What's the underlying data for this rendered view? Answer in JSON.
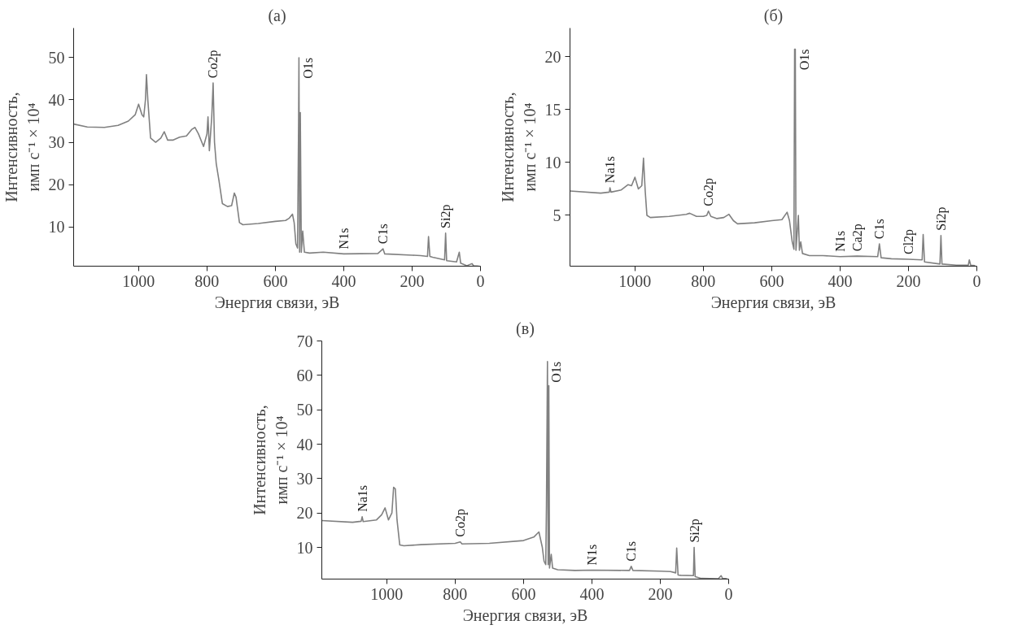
{
  "chart_data": [
    {
      "type": "line",
      "title": "(а)",
      "xlabel": "Энергия связи, эВ",
      "ylabel": "Интенсивность,\nимп с⁻¹ × 10⁴",
      "xlim": [
        1190,
        0
      ],
      "ylim": [
        0.7,
        57
      ],
      "xticks": [
        1000,
        800,
        600,
        400,
        200,
        0
      ],
      "yticks": [
        10,
        20,
        30,
        40,
        50
      ],
      "grid": false,
      "marker": "none",
      "line_style": "solid",
      "series": [
        {
          "color": "#808080",
          "x": [
            1190,
            1150,
            1100,
            1060,
            1030,
            1010,
            1000,
            990,
            985,
            980,
            977,
            973,
            965,
            950,
            935,
            925,
            915,
            900,
            880,
            860,
            845,
            835,
            825,
            810,
            800,
            797,
            793,
            786,
            782,
            778,
            773,
            765,
            755,
            740,
            728,
            720,
            715,
            705,
            695,
            650,
            600,
            570,
            560,
            550,
            545,
            540,
            535,
            532,
            531,
            529,
            527,
            524,
            520,
            515,
            500,
            460,
            400,
            300,
            285,
            280,
            200,
            175,
            155,
            152,
            148,
            140,
            105,
            102,
            99,
            70,
            62,
            58,
            40,
            25,
            20,
            5
          ],
          "values": [
            34.3,
            33.6,
            33.5,
            34,
            35,
            36.5,
            39,
            36.5,
            36,
            40,
            46,
            40,
            31,
            30,
            31,
            32.5,
            30.5,
            30.5,
            31.2,
            31.5,
            33,
            33.5,
            32,
            29,
            32,
            36,
            28,
            36,
            44,
            30,
            25,
            21,
            15.5,
            14.8,
            15,
            18,
            17,
            11,
            10.5,
            10.8,
            11.3,
            11.5,
            12,
            13,
            11,
            6,
            5,
            35,
            50,
            4,
            37,
            4,
            9,
            4,
            3.8,
            4,
            3.6,
            3.7,
            4.8,
            3.6,
            3.3,
            3.2,
            3.0,
            7.7,
            3,
            2.8,
            2.2,
            8.5,
            2,
            1.7,
            4,
            1.4,
            0.8,
            1.3,
            0.8,
            0.7
          ]
        }
      ],
      "annotations": [
        {
          "text": "Co2p",
          "x": 782,
          "y": 44
        },
        {
          "text": "O1s",
          "x": 531,
          "y": 50
        },
        {
          "text": "N1s",
          "x": 400,
          "y": 3.6
        },
        {
          "text": "C1s",
          "x": 285,
          "y": 4.8
        },
        {
          "text": "Si2p",
          "x": 102,
          "y": 8.5
        }
      ]
    },
    {
      "type": "line",
      "title": "(б)",
      "xlabel": "Энергия связи, эВ",
      "ylabel": "Интенсивность,\nимп с⁻¹ × 10⁴",
      "xlim": [
        1190,
        0
      ],
      "ylim": [
        0.2,
        22.7
      ],
      "xticks": [
        1000,
        800,
        600,
        400,
        200,
        0
      ],
      "yticks": [
        5,
        10,
        15,
        20
      ],
      "grid": false,
      "marker": "none",
      "line_style": "solid",
      "series": [
        {
          "color": "#808080",
          "x": [
            1190,
            1100,
            1075,
            1073,
            1070,
            1040,
            1020,
            1010,
            1000,
            990,
            980,
            975,
            970,
            965,
            955,
            900,
            850,
            840,
            820,
            800,
            790,
            785,
            778,
            760,
            740,
            725,
            712,
            700,
            650,
            600,
            570,
            555,
            548,
            540,
            535,
            533,
            531,
            529,
            522,
            519,
            515,
            510,
            490,
            450,
            400,
            350,
            290,
            285,
            280,
            250,
            200,
            160,
            157,
            153,
            108,
            105,
            102,
            60,
            25,
            22,
            18,
            5
          ],
          "values": [
            7.3,
            7.1,
            7.2,
            7.6,
            7.2,
            7.4,
            7.9,
            7.8,
            8.6,
            7.5,
            7.8,
            10.4,
            7.3,
            5.0,
            4.8,
            4.9,
            5.1,
            5.2,
            4.9,
            4.9,
            5.0,
            5.4,
            4.9,
            4.7,
            4.8,
            5.1,
            4.5,
            4.2,
            4.3,
            4.5,
            4.6,
            5.3,
            4.5,
            2.5,
            1.8,
            20.7,
            20.7,
            1.7,
            5.0,
            1.7,
            2.5,
            1.4,
            1.2,
            1.2,
            1.1,
            1.15,
            1.1,
            2.3,
            1.0,
            0.9,
            0.85,
            0.8,
            3.2,
            0.6,
            0.4,
            3.1,
            0.4,
            0.3,
            0.3,
            0.8,
            0.3,
            0.25
          ]
        }
      ],
      "annotations": [
        {
          "text": "Na1s",
          "x": 1073,
          "y": 7.6
        },
        {
          "text": "Co2p",
          "x": 785,
          "y": 5.4
        },
        {
          "text": "O1s",
          "x": 531,
          "y": 20.7
        },
        {
          "text": "N1s",
          "x": 400,
          "y": 1.1
        },
        {
          "text": "Ca2p",
          "x": 350,
          "y": 1.15
        },
        {
          "text": "C1s",
          "x": 285,
          "y": 2.3
        },
        {
          "text": "Cl2p",
          "x": 200,
          "y": 0.85
        },
        {
          "text": "Si2p",
          "x": 105,
          "y": 3.1
        }
      ]
    },
    {
      "type": "line",
      "title": "(в)",
      "xlabel": "Энергия связи, эВ",
      "ylabel": "Интенсивность,\nимп с⁻¹ × 10⁴",
      "xlim": [
        1190,
        0
      ],
      "ylim": [
        0.8,
        70
      ],
      "xticks": [
        1000,
        800,
        600,
        400,
        200,
        0
      ],
      "yticks": [
        10,
        20,
        30,
        40,
        50,
        60,
        70
      ],
      "grid": false,
      "marker": "none",
      "line_style": "solid",
      "series": [
        {
          "color": "#808080",
          "x": [
            1190,
            1100,
            1075,
            1072,
            1069,
            1030,
            1015,
            1005,
            995,
            985,
            980,
            975,
            970,
            962,
            950,
            900,
            800,
            785,
            780,
            700,
            600,
            570,
            555,
            545,
            540,
            535,
            533,
            530,
            528,
            526,
            524,
            519,
            515,
            500,
            450,
            400,
            290,
            285,
            280,
            200,
            170,
            155,
            152,
            148,
            140,
            103,
            101,
            98,
            80,
            30,
            22,
            18,
            5
          ],
          "values": [
            17.8,
            17.3,
            17.6,
            18.9,
            17.5,
            18,
            19.5,
            21.5,
            18,
            20,
            27.5,
            27,
            18,
            10.7,
            10.5,
            10.8,
            11.2,
            11.6,
            11,
            11.2,
            12,
            13,
            14.5,
            10,
            6,
            5,
            22,
            64,
            5,
            57,
            4,
            8,
            4,
            3.5,
            3.3,
            3.4,
            3.3,
            4.5,
            3.3,
            3.1,
            3.0,
            2.6,
            9.8,
            2,
            1.9,
            1.8,
            10,
            1.5,
            1.0,
            0.9,
            1.8,
            1.0,
            0.9
          ]
        }
      ],
      "annotations": [
        {
          "text": "Na1s",
          "x": 1072,
          "y": 18.9
        },
        {
          "text": "Co2p",
          "x": 785,
          "y": 11.6
        },
        {
          "text": "O1s",
          "x": 530,
          "y": 64
        },
        {
          "text": "N1s",
          "x": 400,
          "y": 3.4
        },
        {
          "text": "C1s",
          "x": 285,
          "y": 4.5
        },
        {
          "text": "Si2p",
          "x": 101,
          "y": 10
        }
      ]
    }
  ]
}
